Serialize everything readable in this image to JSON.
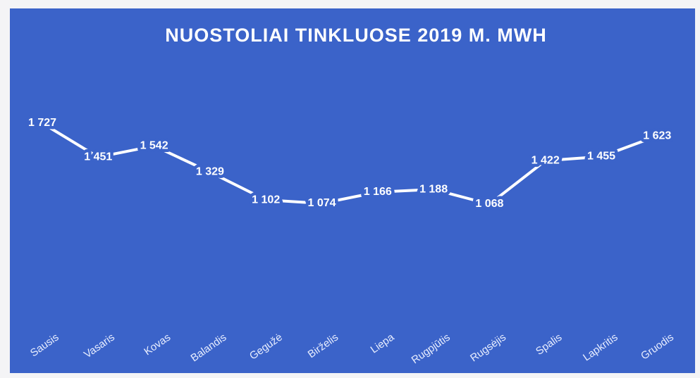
{
  "chart_data": {
    "type": "line",
    "title": "NUOSTOLIAI TINKLUOSE 2019 M. MWH",
    "categories": [
      "Sausis",
      "Vasaris",
      "Kovas",
      "Balandis",
      "Gegužė",
      "Birželis",
      "Liepa",
      "Rugpjūtis",
      "Rugsėjis",
      "Spalis",
      "Lapkritis",
      "Gruodis"
    ],
    "values": [
      1727,
      1451,
      1542,
      1329,
      1102,
      1074,
      1166,
      1188,
      1068,
      1422,
      1455,
      1623
    ],
    "value_labels": [
      "1 727",
      "1 451",
      "1 542",
      "1 329",
      "1 102",
      "1 074",
      "1 166",
      "1 188",
      "1 068",
      "1 422",
      "1 455",
      "1 623"
    ],
    "color": "#ffffff"
  }
}
